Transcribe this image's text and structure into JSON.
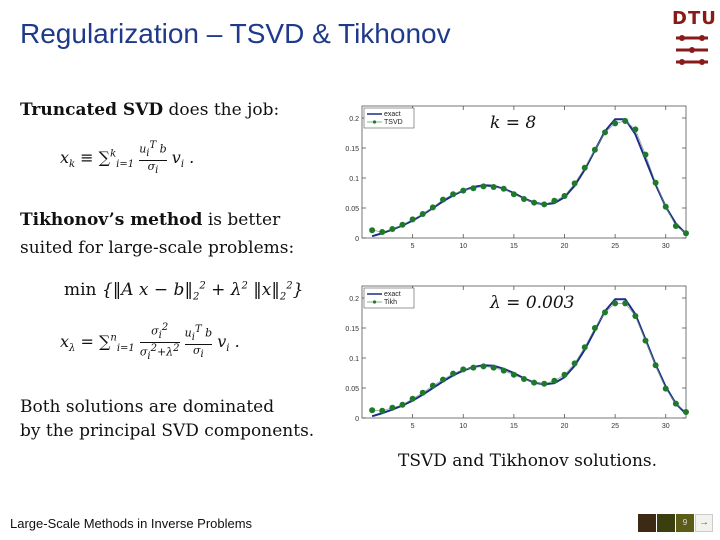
{
  "slide": {
    "title": "Regularization – TSVD & Tikhonov",
    "logo_text": "DTU",
    "footer": "Large-Scale Methods in Inverse Problems",
    "page_number": "9"
  },
  "text": {
    "tsvd_bold": "Truncated SVD",
    "tsvd_rest": " does the job:",
    "tikh_bold": "Tikhonov’s method",
    "tikh_rest": " is better",
    "tikh_line2": "suited for large-scale problems:",
    "both_line1": "Both solutions are dominated",
    "both_line2": "by the principal SVD components.",
    "caption": "TSVD and Tikhonov solutions."
  },
  "colors": {
    "title": "#1f3a8a",
    "exact_line": "#1a2c8c",
    "markers": "#1e7a2a",
    "logo": "#8a1a1a"
  },
  "chart_data": [
    {
      "type": "line",
      "annotation": "k = 8",
      "xlim": [
        0,
        32
      ],
      "ylim": [
        0,
        0.22
      ],
      "xticks": [
        "5",
        "10",
        "15",
        "20",
        "25",
        "30"
      ],
      "yticks": [
        "0",
        "0.05",
        "0.1",
        "0.15",
        "0.2"
      ],
      "legend_position": "top-left",
      "series": [
        {
          "name": "exact",
          "x": [
            1,
            2,
            3,
            4,
            5,
            6,
            7,
            8,
            9,
            10,
            11,
            12,
            13,
            14,
            15,
            16,
            17,
            18,
            19,
            20,
            21,
            22,
            23,
            24,
            25,
            26,
            27,
            28,
            29,
            30,
            31,
            32
          ],
          "y": [
            0.003,
            0.008,
            0.014,
            0.021,
            0.029,
            0.039,
            0.05,
            0.061,
            0.071,
            0.079,
            0.085,
            0.088,
            0.087,
            0.082,
            0.075,
            0.066,
            0.059,
            0.056,
            0.058,
            0.068,
            0.087,
            0.114,
            0.146,
            0.178,
            0.198,
            0.198,
            0.173,
            0.131,
            0.089,
            0.052,
            0.024,
            0.007
          ]
        },
        {
          "name": "TSVD",
          "x": [
            1,
            2,
            3,
            4,
            5,
            6,
            7,
            8,
            9,
            10,
            11,
            12,
            13,
            14,
            15,
            16,
            17,
            18,
            19,
            20,
            21,
            22,
            23,
            24,
            25,
            26,
            27,
            28,
            29,
            30,
            31,
            32
          ],
          "y": [
            0.013,
            0.01,
            0.015,
            0.022,
            0.031,
            0.04,
            0.051,
            0.064,
            0.073,
            0.079,
            0.083,
            0.086,
            0.085,
            0.082,
            0.073,
            0.065,
            0.059,
            0.056,
            0.062,
            0.07,
            0.091,
            0.117,
            0.147,
            0.176,
            0.191,
            0.195,
            0.181,
            0.139,
            0.092,
            0.052,
            0.02,
            0.008
          ]
        }
      ]
    },
    {
      "type": "line",
      "annotation": "λ = 0.003",
      "xlim": [
        0,
        32
      ],
      "ylim": [
        0,
        0.22
      ],
      "xticks": [
        "5",
        "10",
        "15",
        "20",
        "25",
        "30"
      ],
      "yticks": [
        "0",
        "0.05",
        "0.1",
        "0.15",
        "0.2"
      ],
      "legend_position": "top-left",
      "series": [
        {
          "name": "exact",
          "x": [
            1,
            2,
            3,
            4,
            5,
            6,
            7,
            8,
            9,
            10,
            11,
            12,
            13,
            14,
            15,
            16,
            17,
            18,
            19,
            20,
            21,
            22,
            23,
            24,
            25,
            26,
            27,
            28,
            29,
            30,
            31,
            32
          ],
          "y": [
            0.003,
            0.008,
            0.014,
            0.021,
            0.029,
            0.039,
            0.05,
            0.061,
            0.071,
            0.079,
            0.085,
            0.088,
            0.087,
            0.082,
            0.075,
            0.066,
            0.059,
            0.056,
            0.058,
            0.068,
            0.087,
            0.114,
            0.146,
            0.178,
            0.198,
            0.198,
            0.173,
            0.131,
            0.089,
            0.052,
            0.024,
            0.007
          ]
        },
        {
          "name": "Tikh",
          "x": [
            1,
            2,
            3,
            4,
            5,
            6,
            7,
            8,
            9,
            10,
            11,
            12,
            13,
            14,
            15,
            16,
            17,
            18,
            19,
            20,
            21,
            22,
            23,
            24,
            25,
            26,
            27,
            28,
            29,
            30,
            31,
            32
          ],
          "y": [
            0.013,
            0.012,
            0.017,
            0.022,
            0.032,
            0.042,
            0.054,
            0.064,
            0.074,
            0.081,
            0.084,
            0.086,
            0.084,
            0.079,
            0.072,
            0.065,
            0.059,
            0.057,
            0.062,
            0.072,
            0.091,
            0.118,
            0.15,
            0.176,
            0.191,
            0.191,
            0.17,
            0.129,
            0.088,
            0.049,
            0.024,
            0.01
          ]
        }
      ]
    }
  ]
}
